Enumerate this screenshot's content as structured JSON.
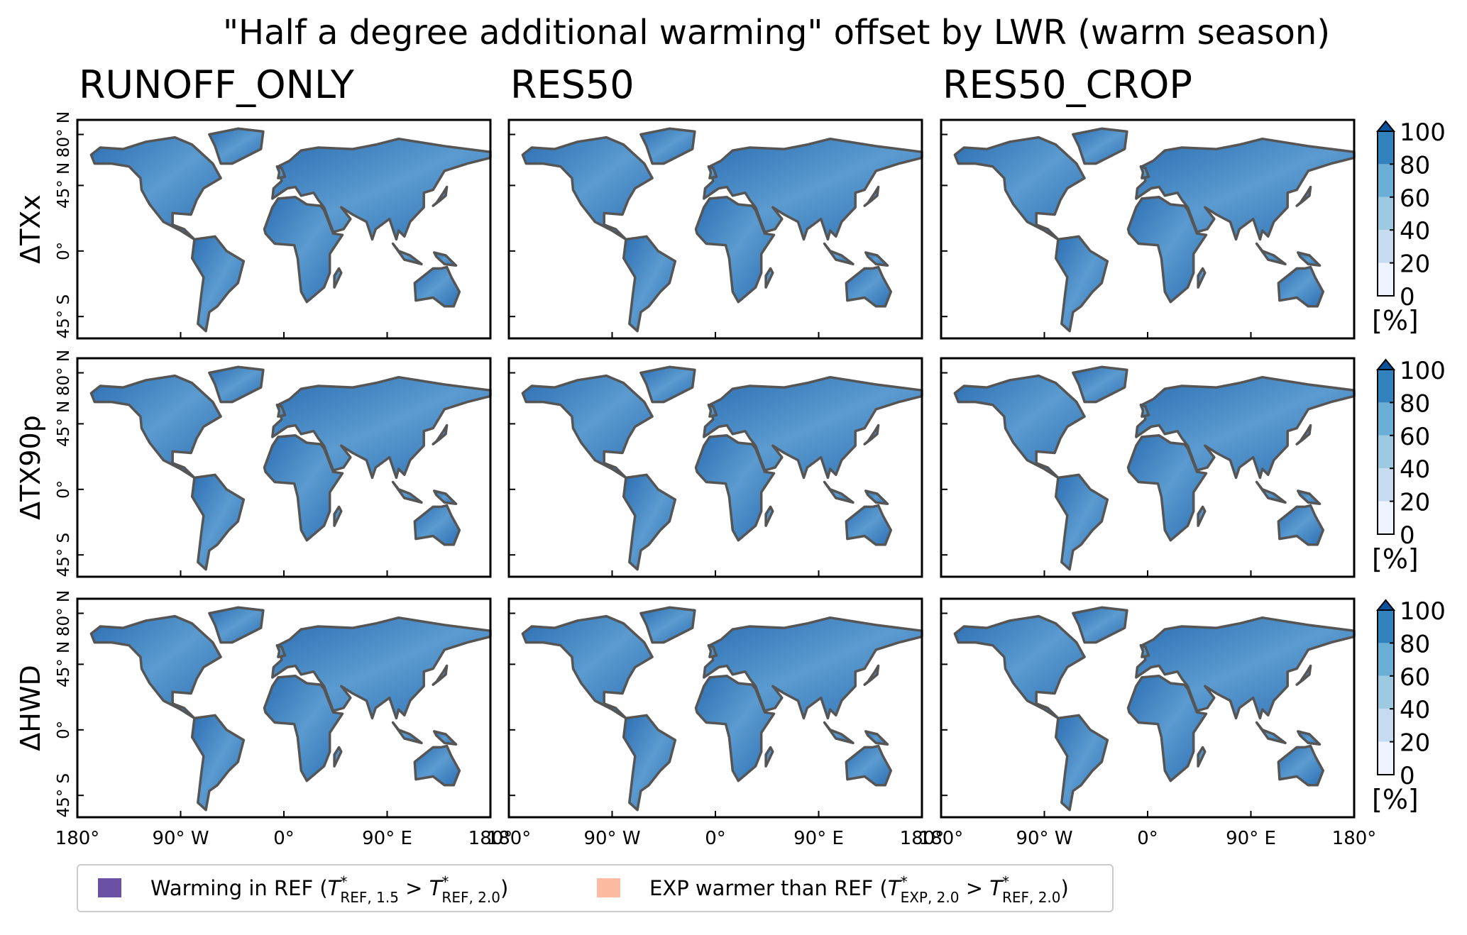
{
  "chart_data": {
    "type": "map-grid",
    "title": "\"Half a degree additional warming\" offset by LWR (warm season)",
    "columns": [
      "RUNOFF_ONLY",
      "RES50",
      "RES50_CROP"
    ],
    "rows": [
      "ΔTXx",
      "ΔTX90p",
      "ΔHWD"
    ],
    "xlim": [
      -180,
      180
    ],
    "ylim": [
      -60,
      90
    ],
    "xticks": [
      {
        "value": -180,
        "label": "180°"
      },
      {
        "value": -90,
        "label": "90° W"
      },
      {
        "value": 0,
        "label": "0°"
      },
      {
        "value": 90,
        "label": "90° E"
      },
      {
        "value": 180,
        "label": "180°"
      }
    ],
    "yticks": [
      {
        "value": 80,
        "label": "80° N"
      },
      {
        "value": 45,
        "label": "45° N"
      },
      {
        "value": 0,
        "label": "0°"
      },
      {
        "value": -45,
        "label": "45° S"
      }
    ],
    "colorbar": {
      "lim": [
        0,
        100
      ],
      "ticks": [
        0,
        20,
        40,
        60,
        80,
        100
      ],
      "unit": "[%]",
      "colors": [
        "#eff3ff",
        "#c6dbef",
        "#9ecae1",
        "#6baed6",
        "#3182bd",
        "#08519c"
      ]
    },
    "legend": [
      {
        "color": "#6a51a3",
        "prefix": "Warming in REF (",
        "lhs": {
          "sym": "T",
          "sup": "*",
          "sub": "REF, 1.5"
        },
        "op": " > ",
        "rhs": {
          "sym": "T",
          "sup": "*",
          "sub": "REF, 2.0"
        },
        "suffix": ")"
      },
      {
        "color": "#fcbba1",
        "prefix": "EXP warmer than REF (",
        "lhs": {
          "sym": "T",
          "sup": "*",
          "sub": "EXP, 2.0"
        },
        "op": " > ",
        "rhs": {
          "sym": "T",
          "sup": "*",
          "sub": "REF, 2.0"
        },
        "suffix": ")"
      }
    ]
  }
}
